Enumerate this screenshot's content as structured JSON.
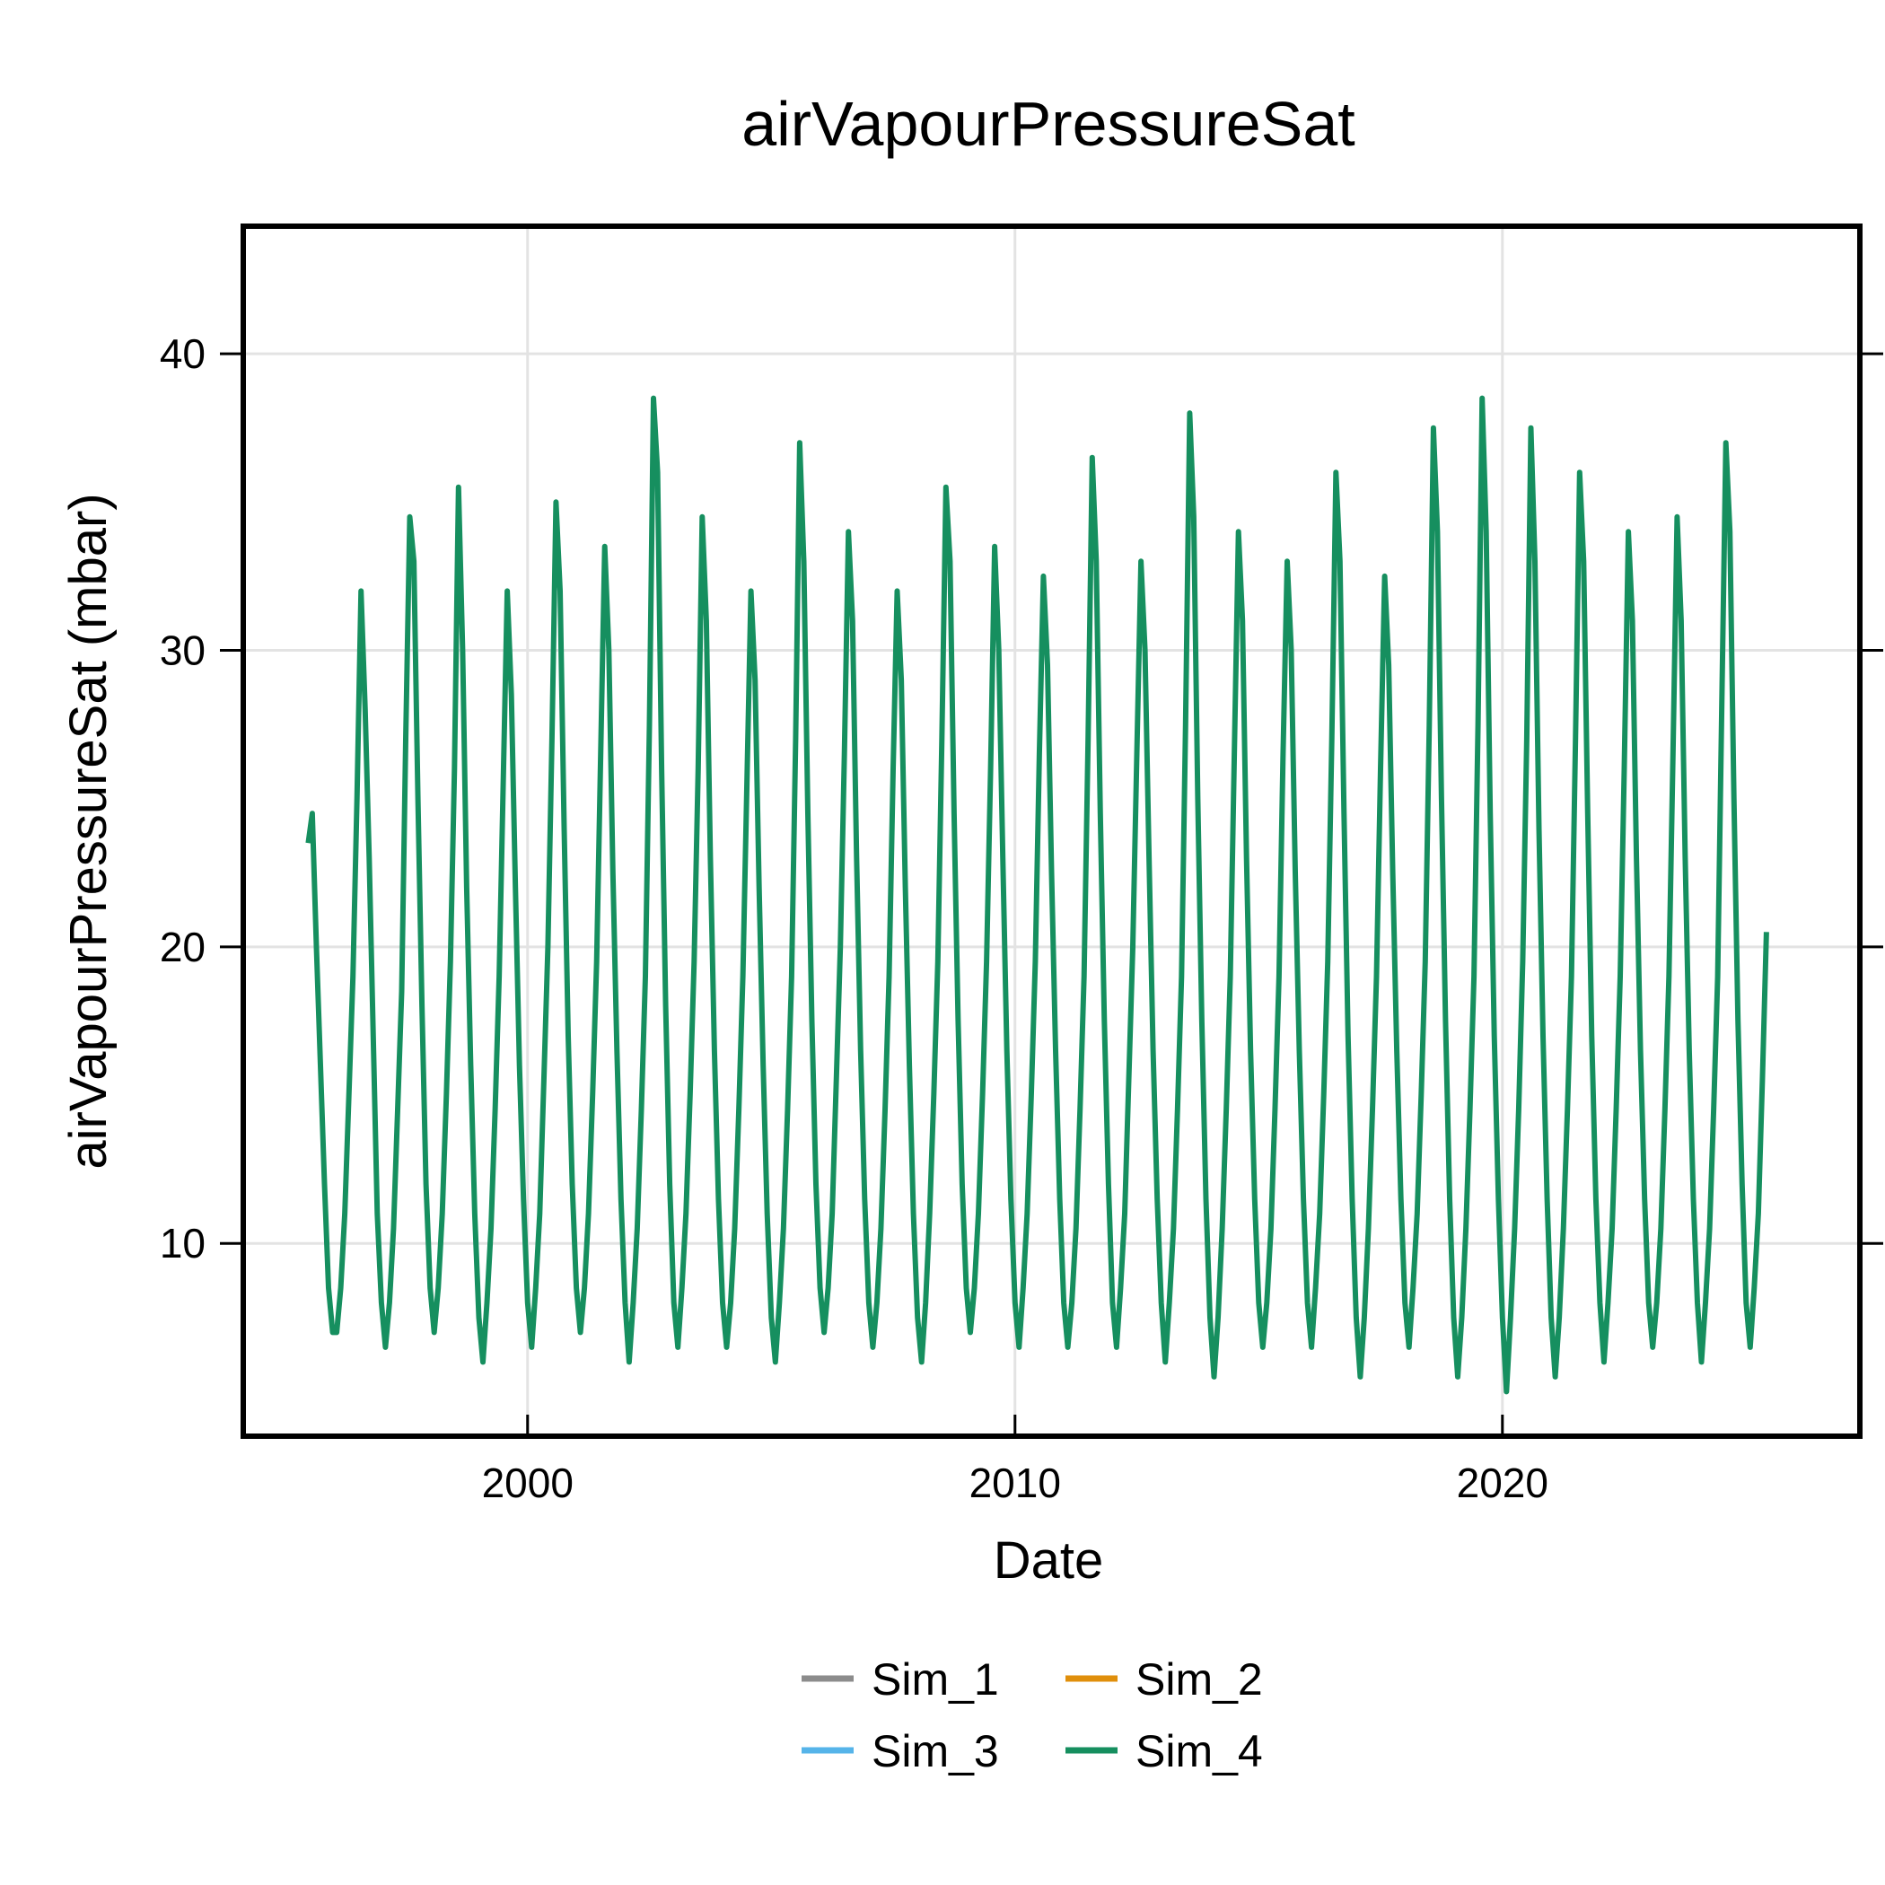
{
  "colors": {
    "Sim_1": "#8c8c8c",
    "Sim_2": "#e08f0b",
    "Sim_3": "#56b4e9",
    "Sim_4": "#168f5f",
    "grid": "#e3e3e3",
    "frame": "#000000"
  },
  "chart_data": {
    "type": "line",
    "title": "airVapourPressureSat",
    "xlabel": "Date",
    "ylabel": "airVapourPressureSat (mbar)",
    "x_axis": {
      "type": "date",
      "range": [
        "1994-03-01",
        "2027-05-01"
      ],
      "ticks": [
        "2000",
        "2010",
        "2020"
      ]
    },
    "y_axis": {
      "range": [
        3.5,
        44.3
      ],
      "ticks": [
        10,
        20,
        30,
        40
      ]
    },
    "grid": true,
    "legend": {
      "position": "bottom-center",
      "columns": 2,
      "entries": [
        "Sim_1",
        "Sim_2",
        "Sim_3",
        "Sim_4"
      ]
    },
    "series_dates": {
      "start": "1995-07-01",
      "interval": "month",
      "count": 360
    },
    "series": [
      {
        "name": "Sim_1",
        "values": []
      },
      {
        "name": "Sim_2",
        "values": []
      },
      {
        "name": "Sim_3",
        "values": []
      },
      {
        "name": "Sim_4",
        "values": [
          23.5,
          24.5,
          20.0,
          16.0,
          12.0,
          8.5,
          7.0,
          7.0,
          8.5,
          11.0,
          15.0,
          19.0,
          25.0,
          32.0,
          28.0,
          23.0,
          17.0,
          11.0,
          8.0,
          6.5,
          8.0,
          10.5,
          14.5,
          18.5,
          27.0,
          34.5,
          33.0,
          25.0,
          18.0,
          12.0,
          8.5,
          7.0,
          8.5,
          11.0,
          15.0,
          19.5,
          26.0,
          35.5,
          30.0,
          22.0,
          16.0,
          11.0,
          7.5,
          6.0,
          8.0,
          10.5,
          14.5,
          19.0,
          25.5,
          32.0,
          28.5,
          22.0,
          16.0,
          11.5,
          8.0,
          6.5,
          8.5,
          11.0,
          15.5,
          20.0,
          27.0,
          35.0,
          32.0,
          24.0,
          17.0,
          12.0,
          8.5,
          7.0,
          8.5,
          11.0,
          15.0,
          19.5,
          26.5,
          33.5,
          30.0,
          22.5,
          16.5,
          11.5,
          8.0,
          6.0,
          8.0,
          10.5,
          14.5,
          19.0,
          27.5,
          38.5,
          36.0,
          26.0,
          18.0,
          12.0,
          8.0,
          6.5,
          8.5,
          11.0,
          15.0,
          19.5,
          26.0,
          34.5,
          31.0,
          23.0,
          16.5,
          11.5,
          8.0,
          6.5,
          8.0,
          10.5,
          14.5,
          19.0,
          25.5,
          32.0,
          29.0,
          22.0,
          16.0,
          11.0,
          7.5,
          6.0,
          8.0,
          10.5,
          14.5,
          19.0,
          27.0,
          37.0,
          33.0,
          24.5,
          17.5,
          12.0,
          8.5,
          7.0,
          8.5,
          11.0,
          15.5,
          20.0,
          26.5,
          34.0,
          31.0,
          23.0,
          16.5,
          11.5,
          8.0,
          6.5,
          8.0,
          10.5,
          14.5,
          19.0,
          26.0,
          32.0,
          29.0,
          22.0,
          16.0,
          11.0,
          7.5,
          6.0,
          8.0,
          11.0,
          15.0,
          19.5,
          27.0,
          35.5,
          33.0,
          24.5,
          17.5,
          12.0,
          8.5,
          7.0,
          8.5,
          11.0,
          15.0,
          19.5,
          26.0,
          33.5,
          30.0,
          23.0,
          16.5,
          11.5,
          8.0,
          6.5,
          8.5,
          11.0,
          15.0,
          19.5,
          26.5,
          32.5,
          29.5,
          22.5,
          16.5,
          11.5,
          8.0,
          6.5,
          8.0,
          10.5,
          14.5,
          19.0,
          27.0,
          36.5,
          33.0,
          24.5,
          17.5,
          12.0,
          8.0,
          6.5,
          8.5,
          11.0,
          15.5,
          20.0,
          26.5,
          33.0,
          30.0,
          23.0,
          16.5,
          11.5,
          8.0,
          6.0,
          8.0,
          10.5,
          14.5,
          19.0,
          27.5,
          38.0,
          34.5,
          25.0,
          17.5,
          11.5,
          7.5,
          5.5,
          7.5,
          10.5,
          14.5,
          19.0,
          26.5,
          34.0,
          31.0,
          23.0,
          16.5,
          11.5,
          8.0,
          6.5,
          8.0,
          10.5,
          14.5,
          19.0,
          26.5,
          33.0,
          30.0,
          22.5,
          16.5,
          11.5,
          8.0,
          6.5,
          8.5,
          11.0,
          15.0,
          19.5,
          27.0,
          36.0,
          33.0,
          24.5,
          17.0,
          11.5,
          7.5,
          5.5,
          7.5,
          10.5,
          14.5,
          19.0,
          26.0,
          32.5,
          29.5,
          22.5,
          16.5,
          11.5,
          8.0,
          6.5,
          8.5,
          11.0,
          15.0,
          19.5,
          27.5,
          37.5,
          34.0,
          25.0,
          17.5,
          11.5,
          7.5,
          5.5,
          7.5,
          10.5,
          14.5,
          19.0,
          27.5,
          38.5,
          34.0,
          24.5,
          17.0,
          11.5,
          7.5,
          5.0,
          7.5,
          10.5,
          14.5,
          19.5,
          27.0,
          37.5,
          33.0,
          24.0,
          17.0,
          11.5,
          7.5,
          5.5,
          7.5,
          10.5,
          14.5,
          19.0,
          27.0,
          36.0,
          33.0,
          24.5,
          17.0,
          11.5,
          8.0,
          6.0,
          8.0,
          10.5,
          14.5,
          19.0,
          26.0,
          34.0,
          31.0,
          23.0,
          16.5,
          11.5,
          8.0,
          6.5,
          8.0,
          10.5,
          14.5,
          19.0,
          26.5,
          34.5,
          31.0,
          23.0,
          16.5,
          11.5,
          8.0,
          6.0,
          8.0,
          10.5,
          14.5,
          19.0,
          28.0,
          37.0,
          34.0,
          25.0,
          17.5,
          12.0,
          8.0,
          6.5,
          8.5,
          11.0,
          15.5,
          20.5
        ]
      }
    ]
  }
}
